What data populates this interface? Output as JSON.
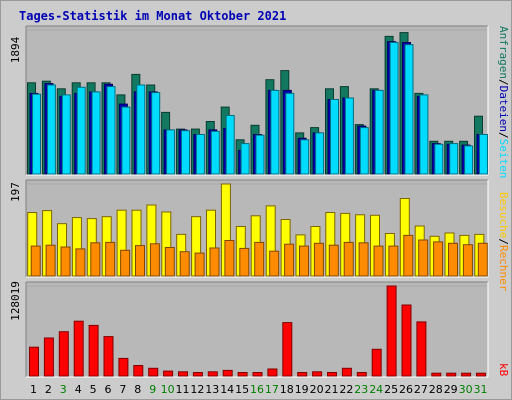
{
  "title": "Tages-Statistik im Monat Oktober 2021",
  "colors": {
    "anfragen": "#137860",
    "seiten": "#00dcff",
    "dateien": "#0000b4",
    "besuche": "#ffff00",
    "rechner": "#ff8c00",
    "kb": "#ff0000",
    "weekend": "#008000",
    "weekday": "#000000",
    "panel": "#b8b8b8",
    "frame": "#cccccc"
  },
  "right_labels": {
    "top": [
      {
        "text": "Anfragen",
        "color": "#137860"
      },
      {
        "text": "/",
        "color": "#000000"
      },
      {
        "text": "Dateien",
        "color": "#0000b4"
      },
      {
        "text": "/",
        "color": "#000000"
      },
      {
        "text": "Seiten",
        "color": "#00dcff"
      }
    ],
    "middle": [
      {
        "text": "Besuche",
        "color": "#ffc800"
      },
      {
        "text": "/",
        "color": "#000000"
      },
      {
        "text": "Rechner",
        "color": "#ff8c00"
      }
    ],
    "bottom": [
      {
        "text": "kB",
        "color": "#ff0000"
      }
    ]
  },
  "chart_data": {
    "type": "bar",
    "title": "Tages-Statistik im Monat Oktober 2021",
    "categories": [
      "1",
      "2",
      "3",
      "4",
      "5",
      "6",
      "7",
      "8",
      "9",
      "10",
      "11",
      "12",
      "13",
      "14",
      "15",
      "16",
      "17",
      "18",
      "19",
      "20",
      "21",
      "22",
      "23",
      "24",
      "25",
      "26",
      "27",
      "28",
      "29",
      "30",
      "31"
    ],
    "weekend_days": [
      "3",
      "9",
      "10",
      "16",
      "17",
      "23",
      "24",
      "30",
      "31"
    ],
    "panels": [
      {
        "id": "top",
        "ymax": 1894,
        "ymax_label": "1894",
        "series": [
          {
            "name": "Anfragen",
            "values": [
              1200,
              1220,
              1120,
              1200,
              1200,
              1200,
              1040,
              1310,
              1170,
              810,
              590,
              590,
              690,
              880,
              450,
              640,
              1240,
              1360,
              540,
              610,
              1120,
              1150,
              650,
              1120,
              1810,
              1860,
              1060,
              430,
              430,
              430,
              760
            ]
          },
          {
            "name": "Dateien",
            "values": [
              1060,
              1190,
              1020,
              1060,
              1080,
              1180,
              920,
              1080,
              1080,
              580,
              580,
              520,
              580,
              600,
              310,
              520,
              1100,
              1100,
              470,
              540,
              980,
              1000,
              630,
              1100,
              1740,
              1730,
              1020,
              400,
              390,
              380,
              520
            ]
          },
          {
            "name": "Seiten",
            "values": [
              1050,
              1170,
              1040,
              1140,
              1080,
              1150,
              880,
              1170,
              1070,
              580,
              570,
              520,
              560,
              770,
              400,
              510,
              1100,
              1060,
              450,
              540,
              980,
              1000,
              610,
              1100,
              1730,
              1700,
              1040,
              390,
              400,
              370,
              520
            ]
          }
        ]
      },
      {
        "id": "middle",
        "ymax": 197,
        "ymax_label": "197",
        "series": [
          {
            "name": "Besuche",
            "values": [
              136,
              140,
              112,
              125,
              123,
              127,
              141,
              141,
              152,
              137,
              89,
              127,
              141,
              197,
              106,
              129,
              150,
              121,
              88,
              106,
              136,
              134,
              131,
              130,
              91,
              166,
              107,
              85,
              92,
              87,
              89
            ]
          },
          {
            "name": "Rechner",
            "values": [
              64,
              66,
              62,
              58,
              71,
              72,
              55,
              65,
              69,
              61,
              52,
              49,
              60,
              76,
              59,
              72,
              53,
              68,
              64,
              70,
              66,
              72,
              71,
              64,
              64,
              87,
              77,
              73,
              70,
              67,
              70
            ]
          }
        ]
      },
      {
        "id": "bottom",
        "ymax": 128019,
        "ymax_label": "128019",
        "series": [
          {
            "name": "kB",
            "values": [
              41000,
              54000,
              63000,
              78000,
              72000,
              56000,
              25000,
              15000,
              11000,
              7000,
              6000,
              5000,
              6000,
              8000,
              5000,
              5000,
              10000,
              76000,
              5000,
              6000,
              5000,
              11000,
              5000,
              38000,
              128019,
              101000,
              77000,
              4000,
              4000,
              4000,
              4000
            ]
          }
        ]
      }
    ]
  }
}
